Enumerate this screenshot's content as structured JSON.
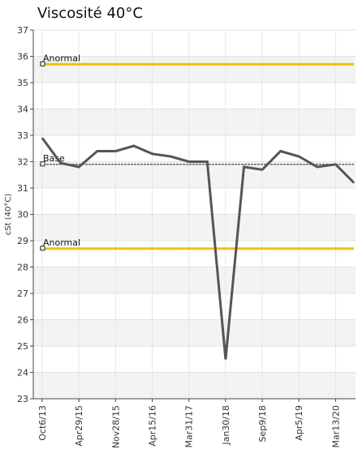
{
  "chart_data": {
    "type": "line",
    "title": "Viscosité 40°C",
    "ylabel": "cSt (40°C)",
    "xlabel": "",
    "ylim": [
      23,
      37
    ],
    "yticks": [
      23,
      24,
      25,
      26,
      27,
      28,
      29,
      30,
      31,
      32,
      33,
      34,
      35,
      36,
      37
    ],
    "xtick_labels": [
      "Oct6/13",
      "Apr29/15",
      "Nov28/15",
      "Apr15/16",
      "Mar31/17",
      "Jan30/18",
      "Sep9/18",
      "Apr5/19",
      "Mar13/20"
    ],
    "grid": true,
    "series": [
      {
        "values": [
          32.9,
          31.95,
          31.8,
          32.4,
          32.4,
          32.6,
          32.3,
          32.2,
          32.0,
          32.0,
          24.5,
          31.8,
          31.7,
          32.4,
          32.2,
          31.8,
          31.9,
          31.2
        ]
      }
    ],
    "reference_lines": [
      {
        "label": "Anormal",
        "value": 35.7,
        "color": "#f2c200"
      },
      {
        "label": "Base",
        "value": 31.9,
        "color": "#666666"
      },
      {
        "label": "Anormal",
        "value": 28.7,
        "color": "#f2c200"
      }
    ],
    "line_color": "#555555"
  }
}
